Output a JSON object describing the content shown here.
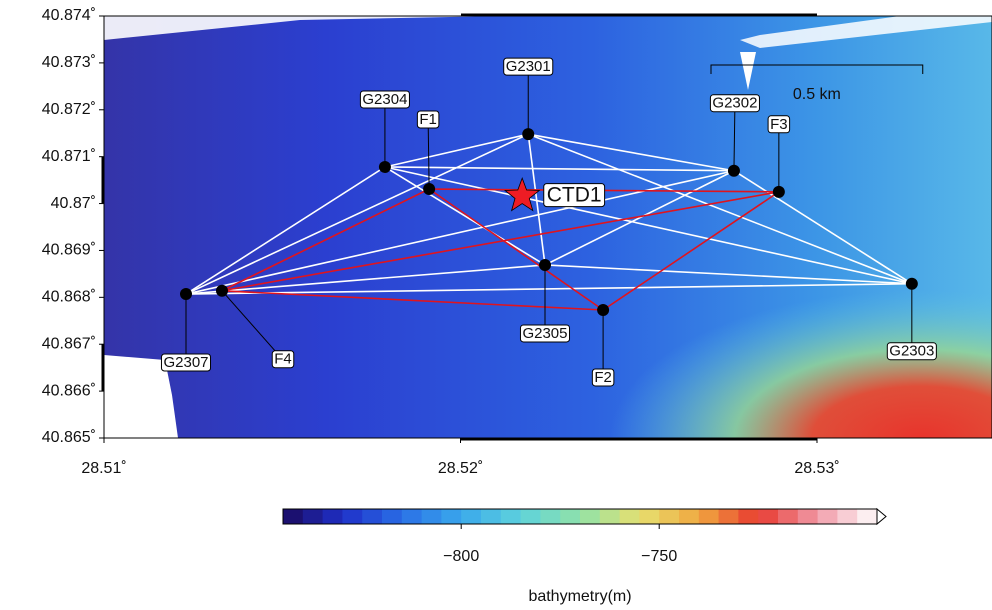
{
  "map": {
    "type": "map",
    "xlim": [
      28.51,
      28.535
    ],
    "ylim": [
      40.865,
      40.874
    ],
    "xticks": [
      {
        "value": 28.51,
        "label": "28.51˚"
      },
      {
        "value": 28.52,
        "label": "28.52˚"
      },
      {
        "value": 28.53,
        "label": "28.53˚"
      }
    ],
    "yticks": [
      {
        "value": 40.865,
        "label": "40.865˚"
      },
      {
        "value": 40.866,
        "label": "40.866˚"
      },
      {
        "value": 40.867,
        "label": "40.867˚"
      },
      {
        "value": 40.868,
        "label": "40.868˚"
      },
      {
        "value": 40.869,
        "label": "40.869˚"
      },
      {
        "value": 40.87,
        "label": "40.87˚"
      },
      {
        "value": 40.871,
        "label": "40.871˚"
      },
      {
        "value": 40.872,
        "label": "40.872˚"
      },
      {
        "value": 40.873,
        "label": "40.873˚"
      },
      {
        "value": 40.874,
        "label": "40.874˚"
      }
    ],
    "stations": [
      {
        "name": "G2301",
        "lon": 28.5219,
        "lat": 40.87148
      },
      {
        "name": "G2304",
        "lon": 28.51788,
        "lat": 40.87078
      },
      {
        "name": "F1",
        "lon": 28.51912,
        "lat": 40.87031
      },
      {
        "name": "G2302",
        "lon": 28.52767,
        "lat": 40.8707
      },
      {
        "name": "F3",
        "lon": 28.52893,
        "lat": 40.87025
      },
      {
        "name": "G2305",
        "lon": 28.52237,
        "lat": 40.86869
      },
      {
        "name": "F2",
        "lon": 28.524,
        "lat": 40.86773
      },
      {
        "name": "G2303",
        "lon": 28.53266,
        "lat": 40.86829
      },
      {
        "name": "G2307",
        "lon": 28.5123,
        "lat": 40.86807
      },
      {
        "name": "F4",
        "lon": 28.51331,
        "lat": 40.86814
      }
    ],
    "ctd": {
      "name": "CTD1",
      "lon": 28.52173,
      "lat": 40.87016,
      "color": "#ee1c24"
    },
    "networks": [
      {
        "color": "#ffffff",
        "members": [
          "G2301",
          "G2304",
          "G2302",
          "G2305",
          "G2303",
          "G2307"
        ]
      },
      {
        "color": "#e0141e",
        "members": [
          "F1",
          "F3",
          "F2",
          "F4"
        ]
      }
    ],
    "scale_bar": {
      "length_km": 0.5,
      "label": "0.5 km"
    },
    "colorbar": {
      "label": "bathymetry(m)",
      "lim": [
        -845,
        -695
      ],
      "step": 5,
      "palette": [
        "#1a0a5e",
        "#1f2fc8",
        "#2a6fe6",
        "#3aa8ec",
        "#5ed2dc",
        "#90e2a8",
        "#e6e070",
        "#f0a840",
        "#e83a30",
        "#f09aa8",
        "#ffffff"
      ],
      "ticks": [
        {
          "value": -800,
          "label": "−800"
        },
        {
          "value": -750,
          "label": "−750"
        }
      ]
    }
  }
}
